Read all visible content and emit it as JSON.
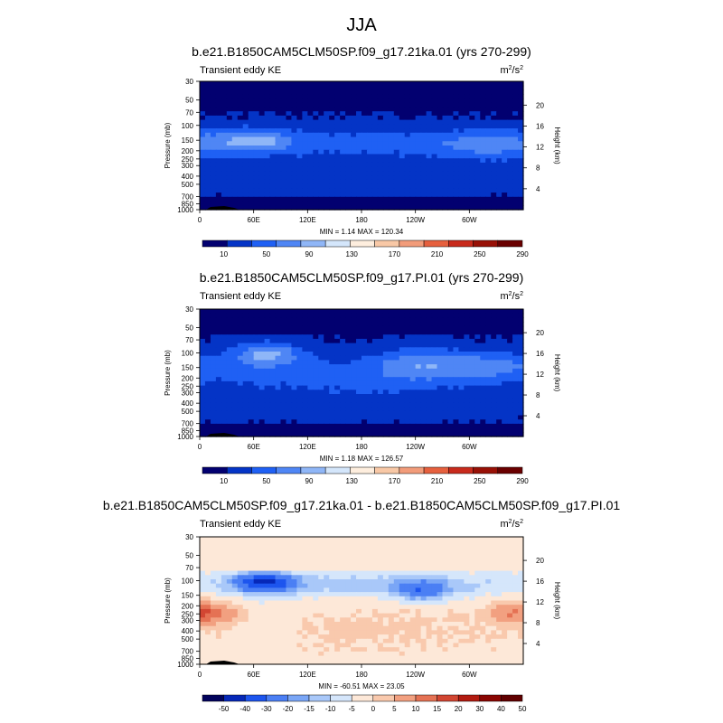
{
  "page": {
    "title": "JJA"
  },
  "colors": {
    "positive_palette": [
      "#020070",
      "#0434c6",
      "#1f60f4",
      "#4f86f5",
      "#8fb6f7",
      "#d4e6fb",
      "#feeede",
      "#f8c8a6",
      "#f29c7a",
      "#e6603e",
      "#c82a1c",
      "#981006",
      "#6a0000"
    ],
    "diff_palette": [
      "#02035c",
      "#0628b8",
      "#1d55ee",
      "#4b7ff4",
      "#7aa6f6",
      "#a9c8f9",
      "#d5e6fb",
      "#fde8d8",
      "#f9c9ad",
      "#f2a080",
      "#e57254",
      "#d24632",
      "#b21b10",
      "#8a0602",
      "#600000"
    ]
  },
  "chart_data": [
    {
      "type": "heatmap",
      "title": "b.e21.B1850CAM5CLM50SP.f09_g17.21ka.01 (yrs 270-299)",
      "variable_label": "Transient eddy KE",
      "units_base": "m",
      "units_sup1": "2",
      "units_mid": "/s",
      "units_sup2": "2",
      "xlabel": "",
      "ylabel": "Pressure (mb)",
      "y2label": "Height (km)",
      "x_ticks": [
        "0",
        "60E",
        "120E",
        "180",
        "120W",
        "60W"
      ],
      "y_ticks": [
        "30",
        "50",
        "70",
        "100",
        "150",
        "200",
        "250",
        "300",
        "400",
        "500",
        "700",
        "850",
        "1000"
      ],
      "y2_ticks": [
        "20",
        "16",
        "12",
        "8",
        "4"
      ],
      "yscale": "log",
      "ylim": [
        1000,
        30
      ],
      "stats": "MIN =   1.14  MAX = 120.34",
      "colorbar": {
        "labels": [
          "10",
          "50",
          "90",
          "130",
          "170",
          "210",
          "250",
          "290"
        ],
        "levels": [
          10,
          30,
          50,
          70,
          90,
          110,
          130,
          150,
          170,
          190,
          210,
          230,
          250,
          270,
          290
        ]
      },
      "min": 1.14,
      "max": 120.34
    },
    {
      "type": "heatmap",
      "title": "b.e21.B1850CAM5CLM50SP.f09_g17.PI.01 (yrs 270-299)",
      "variable_label": "Transient eddy KE",
      "units_base": "m",
      "units_sup1": "2",
      "units_mid": "/s",
      "units_sup2": "2",
      "xlabel": "",
      "ylabel": "Pressure (mb)",
      "y2label": "Height (km)",
      "x_ticks": [
        "0",
        "60E",
        "120E",
        "180",
        "120W",
        "60W"
      ],
      "y_ticks": [
        "30",
        "50",
        "70",
        "100",
        "150",
        "200",
        "250",
        "300",
        "400",
        "500",
        "700",
        "850",
        "1000"
      ],
      "y2_ticks": [
        "20",
        "16",
        "12",
        "8",
        "4"
      ],
      "yscale": "log",
      "ylim": [
        1000,
        30
      ],
      "stats": "MIN =   1.18  MAX = 126.57",
      "colorbar": {
        "labels": [
          "10",
          "50",
          "90",
          "130",
          "170",
          "210",
          "250",
          "290"
        ],
        "levels": [
          10,
          30,
          50,
          70,
          90,
          110,
          130,
          150,
          170,
          190,
          210,
          230,
          250,
          270,
          290
        ]
      },
      "min": 1.18,
      "max": 126.57
    },
    {
      "type": "heatmap",
      "title": "b.e21.B1850CAM5CLM50SP.f09_g17.21ka.01 - b.e21.B1850CAM5CLM50SP.f09_g17.PI.01",
      "variable_label": "Transient eddy KE",
      "units_base": "m",
      "units_sup1": "2",
      "units_mid": "/s",
      "units_sup2": "2",
      "xlabel": "",
      "ylabel": "Pressure (mb)",
      "y2label": "Height (km)",
      "x_ticks": [
        "0",
        "60E",
        "120E",
        "180",
        "120W",
        "60W"
      ],
      "y_ticks": [
        "30",
        "50",
        "70",
        "100",
        "150",
        "200",
        "250",
        "300",
        "400",
        "500",
        "700",
        "850",
        "1000"
      ],
      "y2_ticks": [
        "20",
        "16",
        "12",
        "8",
        "4"
      ],
      "yscale": "log",
      "ylim": [
        1000,
        30
      ],
      "stats": "MIN = -60.51  MAX =  23.05",
      "colorbar": {
        "labels": [
          "-50",
          "-40",
          "-30",
          "-20",
          "-15",
          "-10",
          "-5",
          "0",
          "5",
          "10",
          "15",
          "20",
          "30",
          "40",
          "50"
        ],
        "levels": [
          -50,
          -40,
          -30,
          -20,
          -15,
          -10,
          -5,
          0,
          5,
          10,
          15,
          20,
          30,
          40,
          50
        ]
      },
      "min": -60.51,
      "max": 23.05
    }
  ]
}
